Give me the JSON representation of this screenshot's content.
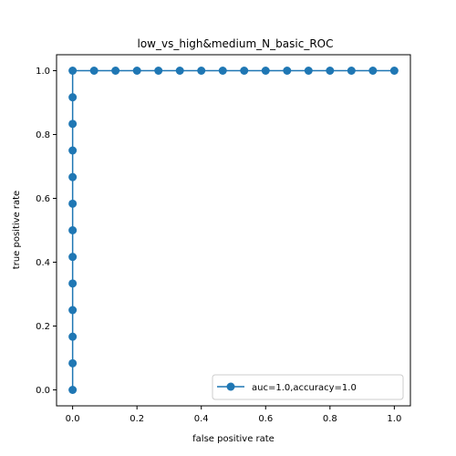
{
  "chart_data": {
    "type": "line",
    "title": "low_vs_high&medium_N_basic_ROC",
    "xlabel": "false positive rate",
    "ylabel": "true positive rate",
    "xlim": [
      -0.05,
      1.05
    ],
    "ylim": [
      -0.05,
      1.05
    ],
    "xticks": [
      0.0,
      0.2,
      0.4,
      0.6,
      0.8,
      1.0
    ],
    "yticks": [
      0.0,
      0.2,
      0.4,
      0.6,
      0.8,
      1.0
    ],
    "xtick_labels": [
      "0.0",
      "0.2",
      "0.4",
      "0.6",
      "0.8",
      "1.0"
    ],
    "ytick_labels": [
      "0.0",
      "0.2",
      "0.4",
      "0.6",
      "0.8",
      "1.0"
    ],
    "grid": false,
    "legend_position": "bottom-right",
    "series": [
      {
        "name": "auc=1.0,accuracy=1.0",
        "color": "#1f77b4",
        "marker": "circle",
        "x": [
          0.0,
          0.0,
          0.0,
          0.0,
          0.0,
          0.0,
          0.0,
          0.0,
          0.0,
          0.0,
          0.0,
          0.0,
          0.0,
          0.0667,
          0.1333,
          0.2,
          0.2667,
          0.3333,
          0.4,
          0.4667,
          0.5333,
          0.6,
          0.6667,
          0.7333,
          0.8,
          0.8667,
          0.9333,
          1.0
        ],
        "y": [
          0.0,
          0.0833,
          0.1667,
          0.25,
          0.3333,
          0.4167,
          0.5,
          0.5833,
          0.6667,
          0.75,
          0.8333,
          0.9167,
          1.0,
          1.0,
          1.0,
          1.0,
          1.0,
          1.0,
          1.0,
          1.0,
          1.0,
          1.0,
          1.0,
          1.0,
          1.0,
          1.0,
          1.0,
          1.0
        ]
      }
    ]
  }
}
